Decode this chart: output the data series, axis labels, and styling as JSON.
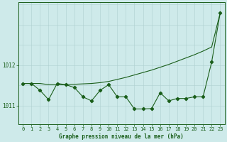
{
  "bg_color": "#ceeaea",
  "line_color": "#1a5e1a",
  "grid_color": "#aed0d0",
  "title": "Graphe pression niveau de la mer (hPa)",
  "title_color": "#1a5e1a",
  "ylabel_ticks": [
    1011,
    1012
  ],
  "xlim": [
    -0.5,
    23.5
  ],
  "ylim": [
    1010.55,
    1013.55
  ],
  "hours": [
    0,
    1,
    2,
    3,
    4,
    5,
    6,
    7,
    8,
    9,
    10,
    11,
    12,
    13,
    14,
    15,
    16,
    17,
    18,
    19,
    20,
    21,
    22,
    23
  ],
  "smooth_line": [
    1011.55,
    1011.55,
    1011.55,
    1011.52,
    1011.52,
    1011.52,
    1011.53,
    1011.54,
    1011.55,
    1011.57,
    1011.6,
    1011.65,
    1011.7,
    1011.76,
    1011.82,
    1011.88,
    1011.95,
    1012.02,
    1012.1,
    1012.18,
    1012.26,
    1012.35,
    1012.45,
    1013.3
  ],
  "jagged_line": [
    1011.55,
    1011.55,
    1011.38,
    1011.15,
    1011.55,
    1011.52,
    1011.45,
    1011.22,
    1011.12,
    1011.38,
    1011.52,
    1011.22,
    1011.22,
    1010.92,
    1010.92,
    1010.93,
    1011.32,
    1011.12,
    1011.18,
    1011.18,
    1011.22,
    1011.22,
    1012.08,
    1013.3
  ],
  "tick_fontsize": 5,
  "ylabel_fontsize": 5.5,
  "title_fontsize": 5.5,
  "marker_size": 2.2,
  "line_width": 0.8
}
